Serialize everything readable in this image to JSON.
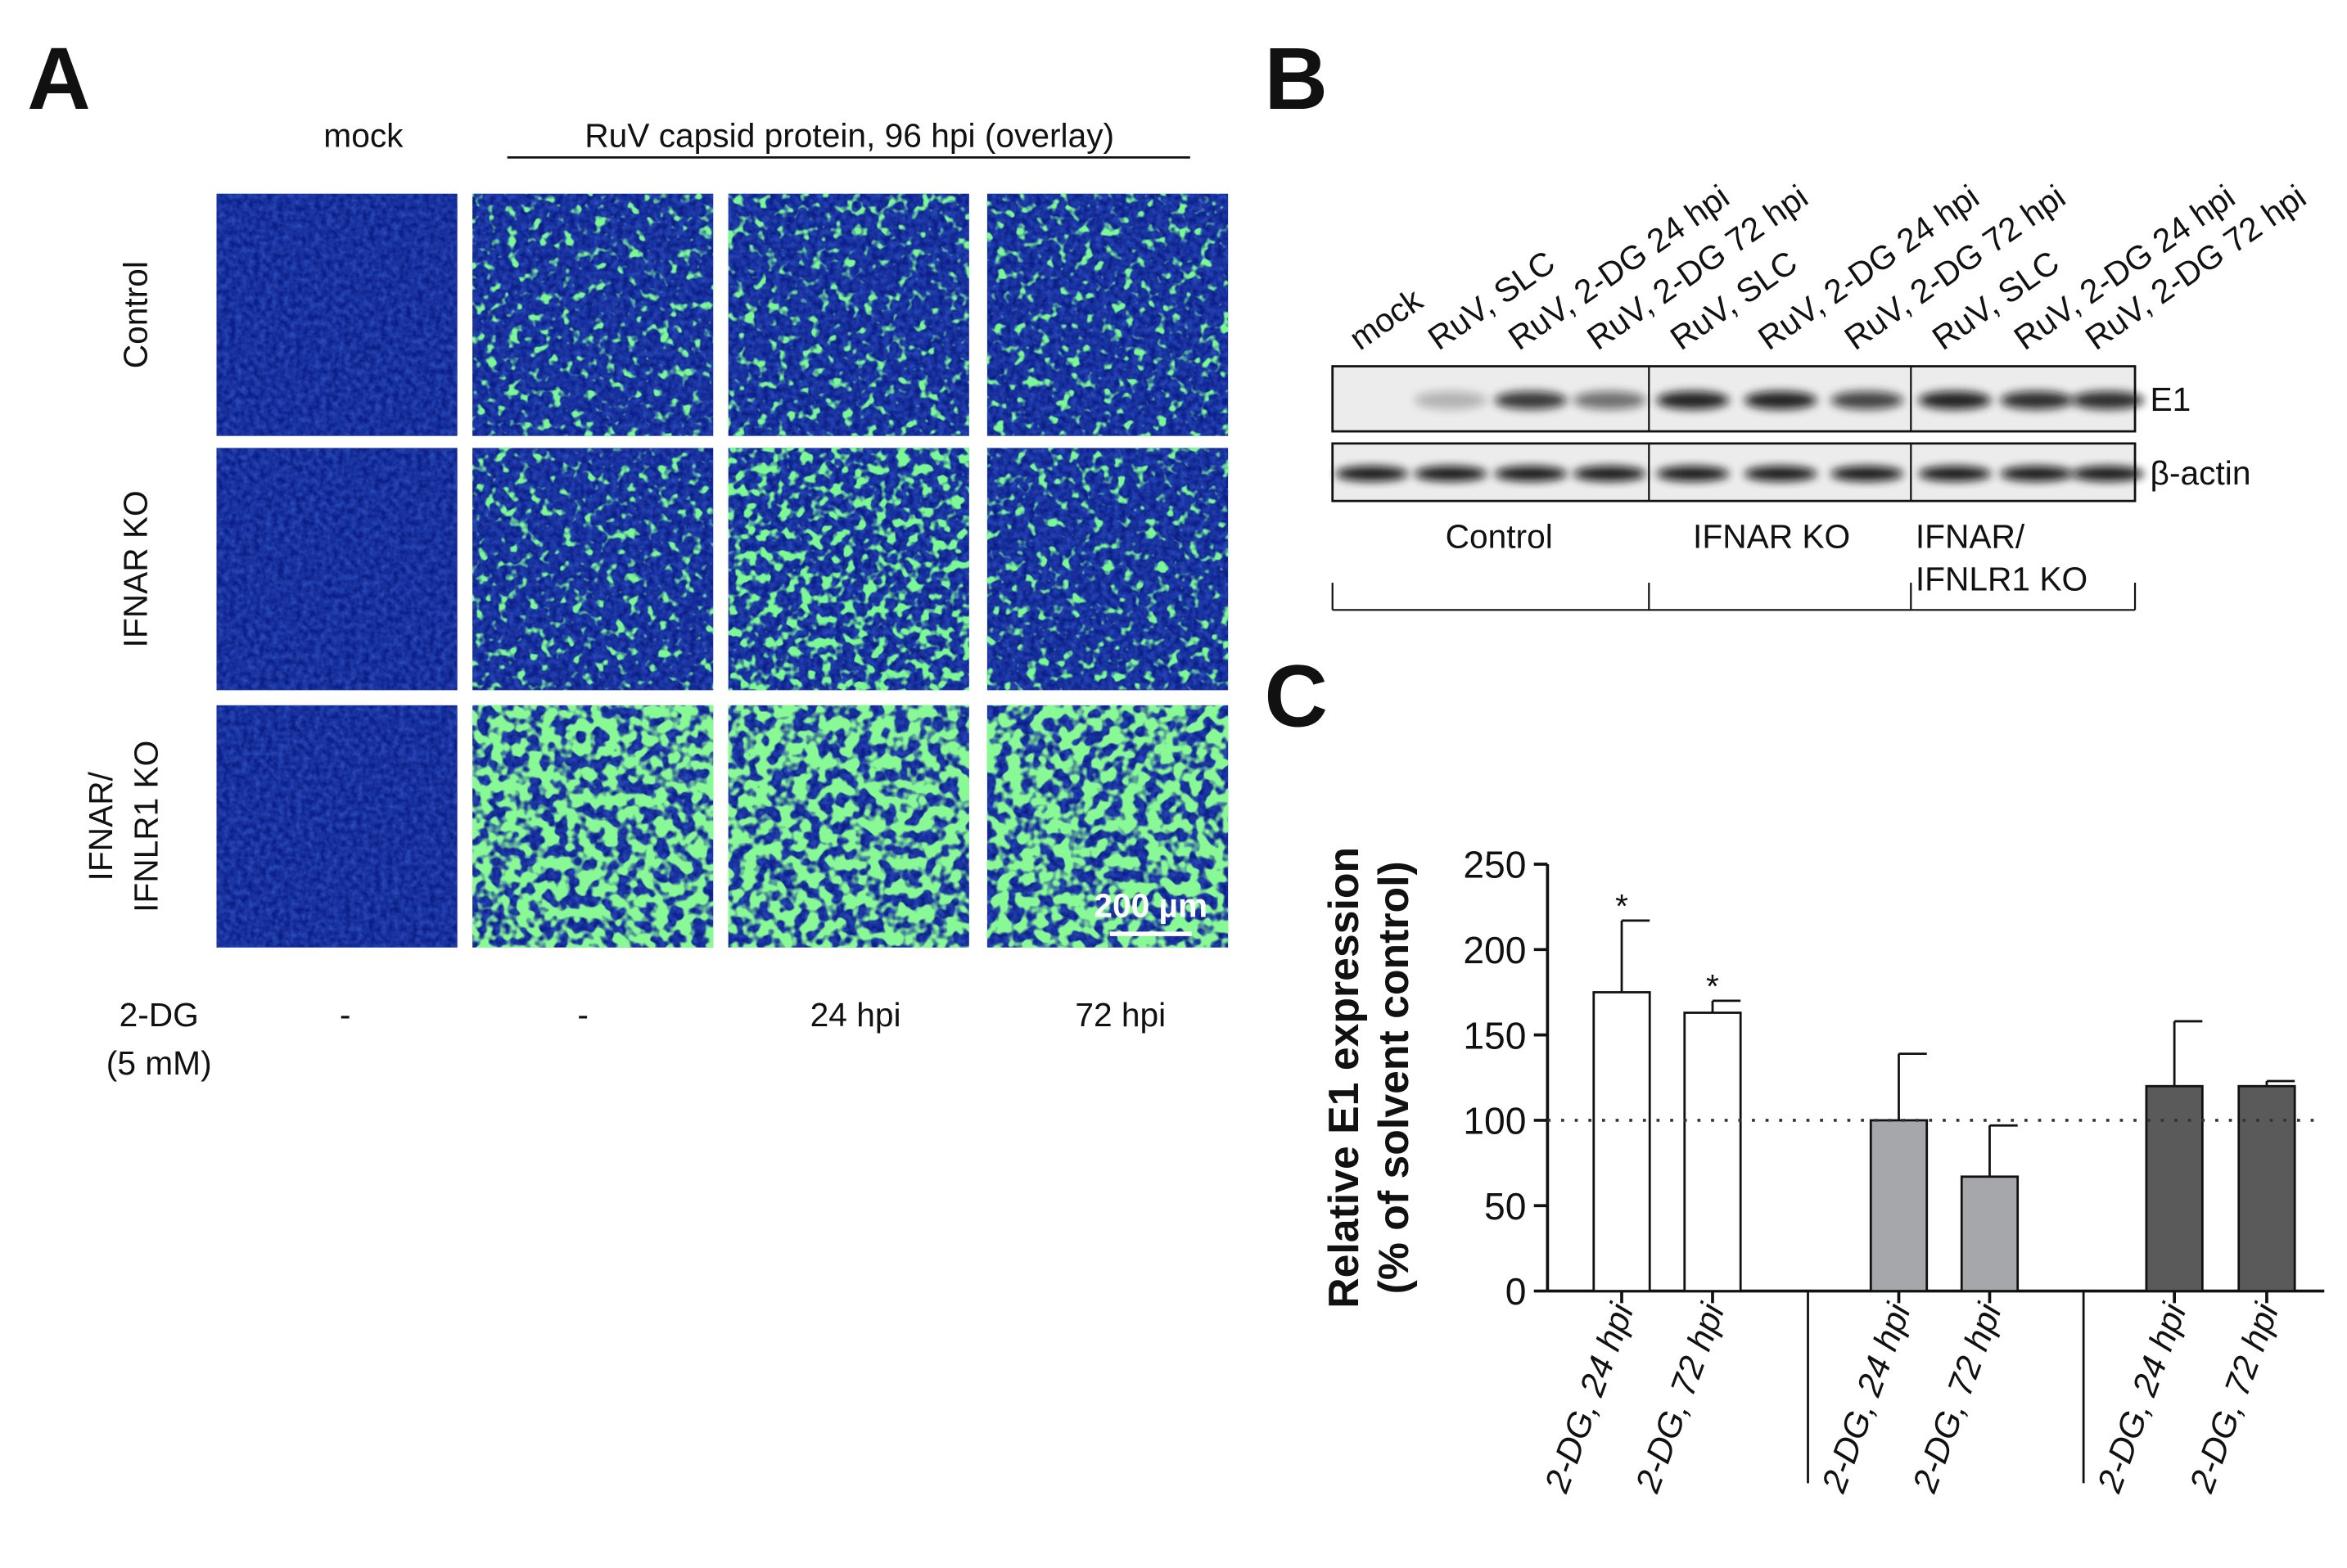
{
  "panel_a": {
    "label": "A",
    "column_headers": [
      "mock",
      "RuV capsid protein, 96 hpi (overlay)"
    ],
    "row_labels": [
      [
        "Control"
      ],
      [
        "IFNAR KO"
      ],
      [
        "IFNAR/",
        "IFNLR1 KO"
      ]
    ],
    "scale_bar": "200 µm",
    "treatment_label": [
      "2-DG",
      "(5 mM)"
    ],
    "treatment_values": [
      "-",
      "-",
      "24 hpi",
      "72 hpi"
    ]
  },
  "panel_b": {
    "label": "B",
    "lanes": [
      "mock",
      "RuV, SLC",
      "RuV, 2-DG 24 hpi",
      "RuV, 2-DG 72 hpi",
      "RuV, SLC",
      "RuV, 2-DG 24 hpi",
      "RuV, 2-DG 72 hpi",
      "RuV, SLC",
      "RuV, 2-DG 24 hpi",
      "RuV, 2-DG 72 hpi"
    ],
    "bands": [
      "E1",
      "β-actin"
    ],
    "groups": [
      [
        "Control"
      ],
      [
        "IFNAR KO"
      ],
      [
        "IFNAR/",
        "IFNLR1 KO"
      ]
    ]
  },
  "panel_c": {
    "label": "C"
  },
  "chart_data": {
    "type": "bar",
    "y_label": [
      "Relative E1 expression",
      "(% of solvent control)"
    ],
    "categories": [
      "2-DG, 24 hpi",
      "2-DG, 72 hpi",
      "2-DG, 24 hpi",
      "2-DG, 72 hpi",
      "2-DG, 24 hpi",
      "2-DG, 72 hpi"
    ],
    "values": [
      175,
      163,
      100,
      67,
      120,
      120
    ],
    "errors": [
      42,
      7,
      39,
      30,
      38,
      3
    ],
    "colors": [
      "#ffffff",
      "#ffffff",
      "#a6a7ab",
      "#a6a7ab",
      "#5a5a5a",
      "#5a5a5a"
    ],
    "significance": [
      "*",
      "*",
      null,
      null,
      null,
      null
    ],
    "reference_line": 100,
    "ylim": [
      0,
      250
    ],
    "yticks": [
      0,
      50,
      100,
      150,
      200,
      250
    ]
  }
}
